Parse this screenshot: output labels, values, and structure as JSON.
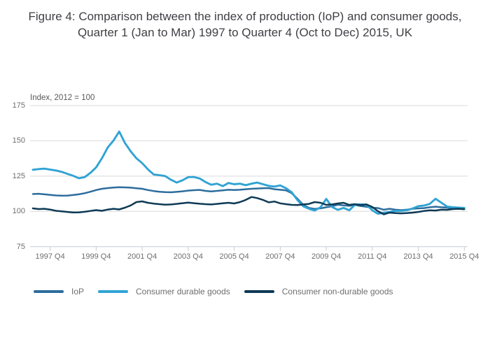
{
  "title": "Figure 4: Comparison between the index of production (IoP) and consumer goods, Quarter 1 (Jan to Mar) 1997 to Quarter 4 (Oct to Dec) 2015, UK",
  "colors": {
    "grid": "#d9d9d9",
    "axis": "#c3ccd6",
    "tick_text": "#6e6e6e",
    "title_text": "#3f4045",
    "iop_line": "#2d6d9d",
    "durable_line": "#31a3d4",
    "nondurable_line": "#0e3a55"
  },
  "chart_data": {
    "type": "line",
    "title": "Figure 4: Comparison between the index of production (IoP) and consumer goods, Quarter 1 (Jan to Mar) 1997 to Quarter 4 (Oct to Dec) 2015, UK",
    "index_note": "Index, 2012 = 100",
    "xlabel": "",
    "ylabel": "Index, 2012 = 100",
    "ylim": [
      75,
      175
    ],
    "grid": "horizontal",
    "legend_position": "bottom",
    "x_start": "1997 Q1",
    "x_end": "2015 Q4",
    "quarters_total": 76,
    "yticks": [
      175,
      150,
      125,
      100,
      75
    ],
    "xticks": [
      {
        "label": "1997 Q4",
        "q": 3
      },
      {
        "label": "1999 Q4",
        "q": 11
      },
      {
        "label": "2001 Q4",
        "q": 19
      },
      {
        "label": "2003 Q4",
        "q": 27
      },
      {
        "label": "2005 Q4",
        "q": 35
      },
      {
        "label": "2007 Q4",
        "q": 43
      },
      {
        "label": "2009 Q4",
        "q": 51
      },
      {
        "label": "2011 Q4",
        "q": 59
      },
      {
        "label": "2013 Q4",
        "q": 67
      },
      {
        "label": "2015 Q4",
        "q": 75
      }
    ],
    "series": [
      {
        "name": "IoP",
        "color": "#2d6d9d",
        "values": [
          112.3,
          112.5,
          112.1,
          111.7,
          111.3,
          111.1,
          111.2,
          111.6,
          112.1,
          112.9,
          113.9,
          115.1,
          116.0,
          116.5,
          116.9,
          117.1,
          117.0,
          116.8,
          116.4,
          116.0,
          115.1,
          114.4,
          113.9,
          113.6,
          113.5,
          113.8,
          114.2,
          114.7,
          115.0,
          115.2,
          114.5,
          114.1,
          114.5,
          114.9,
          115.3,
          115.1,
          115.3,
          115.7,
          116.0,
          116.2,
          116.4,
          116.5,
          115.7,
          115.3,
          114.9,
          112.9,
          108.9,
          104.6,
          102.4,
          101.7,
          102.1,
          102.9,
          103.6,
          104.7,
          104.2,
          103.9,
          104.5,
          103.8,
          103.2,
          102.6,
          102.3,
          101.2,
          101.8,
          101.2,
          100.9,
          101.2,
          101.8,
          102.1,
          102.3,
          102.9,
          103.3,
          102.9,
          102.6,
          102.4,
          102.1,
          102.1
        ]
      },
      {
        "name": "Consumer durable goods",
        "color": "#31a3d4",
        "values": [
          129.5,
          130.0,
          130.3,
          129.6,
          129.0,
          128.0,
          126.6,
          125.2,
          123.5,
          124.3,
          127.3,
          131.2,
          137.6,
          145.2,
          150.1,
          156.6,
          148.5,
          142.6,
          137.6,
          134.2,
          129.8,
          126.1,
          125.6,
          125.0,
          122.4,
          120.4,
          122.0,
          124.3,
          124.4,
          123.3,
          120.8,
          118.9,
          119.6,
          117.9,
          120.1,
          119.2,
          119.6,
          118.6,
          119.6,
          120.4,
          119.2,
          118.1,
          117.6,
          118.4,
          116.4,
          113.5,
          107.9,
          103.6,
          101.8,
          100.6,
          102.9,
          108.8,
          103.1,
          101.1,
          102.4,
          100.8,
          104.7,
          105.0,
          104.7,
          100.8,
          98.3,
          99.0,
          99.6,
          100.3,
          100.3,
          100.8,
          102.0,
          103.7,
          104.1,
          105.3,
          108.9,
          106.2,
          103.4,
          102.9,
          102.6,
          102.4
        ]
      },
      {
        "name": "Consumer non-durable goods",
        "color": "#0e3a55",
        "values": [
          102.1,
          101.6,
          101.8,
          101.3,
          100.4,
          100.0,
          99.6,
          99.2,
          99.3,
          99.7,
          100.3,
          100.9,
          100.4,
          101.3,
          101.8,
          101.4,
          102.6,
          104.2,
          106.6,
          107.1,
          106.1,
          105.5,
          105.1,
          104.7,
          104.9,
          105.3,
          105.8,
          106.2,
          105.8,
          105.4,
          105.1,
          104.9,
          105.3,
          105.7,
          106.1,
          105.6,
          106.6,
          108.1,
          110.2,
          109.4,
          108.1,
          106.4,
          107.0,
          105.7,
          105.1,
          104.6,
          104.5,
          104.9,
          105.3,
          106.6,
          106.1,
          104.6,
          104.9,
          105.6,
          106.1,
          104.6,
          105.1,
          104.4,
          104.9,
          103.1,
          100.1,
          97.9,
          99.1,
          98.8,
          98.6,
          98.8,
          99.1,
          99.6,
          100.3,
          100.8,
          100.6,
          101.2,
          101.1,
          101.6,
          101.8,
          101.5
        ]
      }
    ]
  }
}
